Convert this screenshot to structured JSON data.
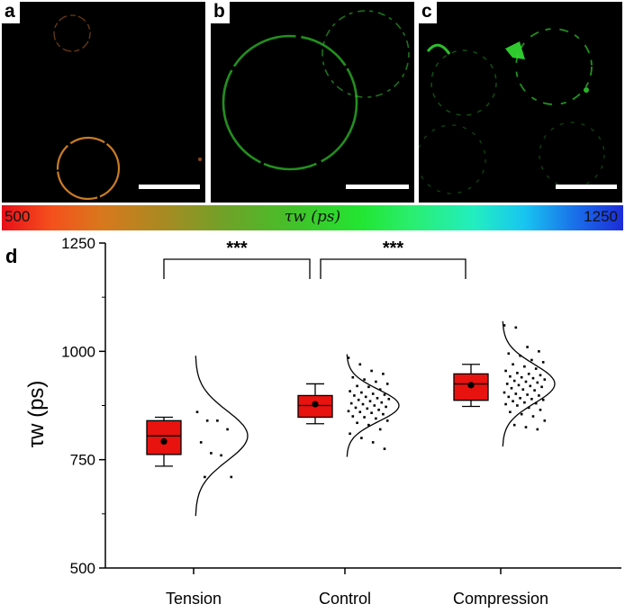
{
  "panels": [
    {
      "label": "a"
    },
    {
      "label": "b"
    },
    {
      "label": "c"
    }
  ],
  "colorbar": {
    "min_label": "500",
    "max_label": "1250",
    "label": "τw (ps)",
    "colors": [
      "#e8101a",
      "#a88a22",
      "#22e632",
      "#22eec0",
      "#1c2cd8"
    ]
  },
  "panel_d_label": "d",
  "chart_data": {
    "type": "box",
    "categories": [
      "Tension",
      "Control",
      "Compression"
    ],
    "ylabel": "τw (ps)",
    "ylim": [
      500,
      1250
    ],
    "yticks": [
      500,
      750,
      1000,
      1250
    ],
    "box_color": "#e8120f",
    "series": [
      {
        "category": "Tension",
        "whisker_low": 735,
        "q1": 762,
        "median": 805,
        "q3": 840,
        "whisker_high": 848,
        "mean": 792,
        "points": [
          860,
          840,
          840,
          820,
          790,
          765,
          760,
          710,
          710
        ]
      },
      {
        "category": "Control",
        "whisker_low": 833,
        "q1": 848,
        "median": 875,
        "q3": 898,
        "whisker_high": 925,
        "mean": 878,
        "points": [
          985,
          970,
          955,
          948,
          940,
          935,
          930,
          925,
          920,
          918,
          912,
          908,
          905,
          902,
          900,
          898,
          895,
          892,
          890,
          888,
          885,
          882,
          880,
          878,
          875,
          872,
          870,
          868,
          865,
          862,
          860,
          858,
          855,
          850,
          848,
          845,
          840,
          835,
          830,
          820,
          810,
          800,
          790,
          775
        ]
      },
      {
        "category": "Compression",
        "whisker_low": 873,
        "q1": 887,
        "median": 925,
        "q3": 948,
        "whisker_high": 970,
        "mean": 922,
        "points": [
          1060,
          1055,
          1010,
          1000,
          995,
          990,
          980,
          975,
          970,
          965,
          960,
          955,
          950,
          948,
          945,
          942,
          940,
          938,
          935,
          932,
          930,
          928,
          925,
          922,
          920,
          918,
          915,
          912,
          910,
          905,
          902,
          900,
          898,
          895,
          892,
          890,
          888,
          885,
          882,
          880,
          878,
          875,
          870,
          865,
          860,
          855,
          850,
          840,
          830,
          825,
          820
        ]
      }
    ],
    "significance": [
      {
        "from": "Tension",
        "to": "Control",
        "label": "***"
      },
      {
        "from": "Control",
        "to": "Compression",
        "label": "***"
      }
    ]
  }
}
